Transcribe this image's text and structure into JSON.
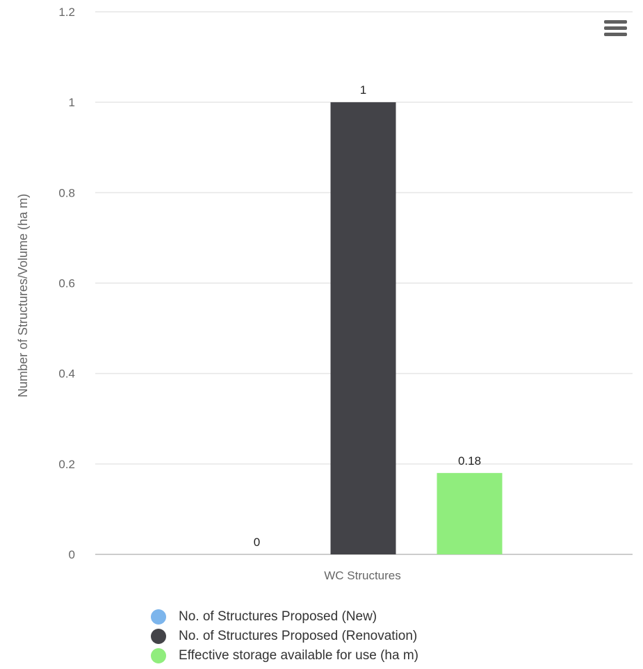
{
  "chart_data": {
    "type": "bar",
    "categories": [
      "WC Structures"
    ],
    "series": [
      {
        "name": "No. of Structures Proposed (New)",
        "values": [
          0
        ],
        "color": "#7cb5ec"
      },
      {
        "name": "No. of Structures Proposed (Renovation)",
        "values": [
          1
        ],
        "color": "#434348"
      },
      {
        "name": "Effective storage available for use (ha m)",
        "values": [
          0.18
        ],
        "color": "#90ed7d"
      }
    ],
    "data_labels": [
      "0",
      "1",
      "0.18"
    ],
    "title": "",
    "xlabel": "",
    "ylabel": "Number of Structures/Volume (ha m)",
    "ylim": [
      0,
      1.2
    ],
    "yticks": [
      0,
      0.2,
      0.4,
      0.6,
      0.8,
      1,
      1.2
    ],
    "ytick_labels": [
      "0",
      "0.2",
      "0.4",
      "0.6",
      "0.8",
      "1",
      "1.2"
    ],
    "grid": true,
    "legend_position": "bottom"
  },
  "menu": {
    "icon": "hamburger-menu-icon"
  },
  "colors": {
    "gridline": "#e6e6e6",
    "axis_line": "#cccccc",
    "tick_text": "#666666"
  }
}
